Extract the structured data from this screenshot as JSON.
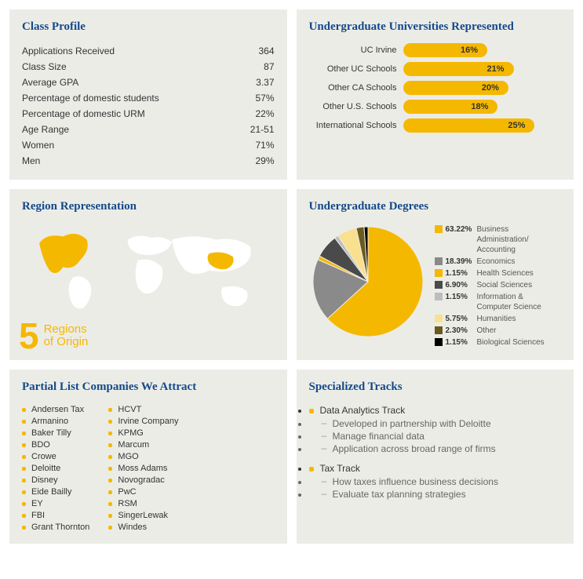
{
  "colors": {
    "panel_bg": "#ecece7",
    "heading": "#144a8a",
    "accent": "#f5b800",
    "text": "#333333",
    "muted": "#666666"
  },
  "class_profile": {
    "title": "Class Profile",
    "rows": [
      {
        "label": "Applications Received",
        "value": "364"
      },
      {
        "label": "Class Size",
        "value": "87"
      },
      {
        "label": "Average GPA",
        "value": "3.37"
      },
      {
        "label": "Percentage of domestic students",
        "value": "57%"
      },
      {
        "label": "Percentage of domestic URM",
        "value": "22%"
      },
      {
        "label": "Age Range",
        "value": "21-51"
      },
      {
        "label": "Women",
        "value": "71%"
      },
      {
        "label": "Men",
        "value": "29%"
      }
    ]
  },
  "universities": {
    "title": "Undergraduate Universities Represented",
    "type": "bar",
    "bar_color": "#f5b800",
    "max": 30,
    "items": [
      {
        "label": "UC Irvine",
        "pct": 16
      },
      {
        "label": "Other UC Schools",
        "pct": 21
      },
      {
        "label": "Other CA Schools",
        "pct": 20
      },
      {
        "label": "Other U.S. Schools",
        "pct": 18
      },
      {
        "label": "International Schools",
        "pct": 25
      }
    ]
  },
  "region": {
    "title": "Region Representation",
    "big_number": "5",
    "caption_line1": "Regions",
    "caption_line2": "of Origin",
    "map_land_color": "#ffffff",
    "map_highlight_color": "#f5b800"
  },
  "degrees": {
    "title": "Undergraduate Degrees",
    "type": "pie",
    "slices": [
      {
        "pct": 63.22,
        "label": "Business Administration/ Accounting",
        "color": "#f5b800"
      },
      {
        "pct": 18.39,
        "label": "Economics",
        "color": "#8a8a8a"
      },
      {
        "pct": 1.15,
        "label": "Health Sciences",
        "color": "#f5b800"
      },
      {
        "pct": 6.9,
        "label": "Social Sciences",
        "color": "#4a4a4a"
      },
      {
        "pct": 1.15,
        "label": "Information & Computer Science",
        "color": "#bdbdbd"
      },
      {
        "pct": 5.75,
        "label": "Humanities",
        "color": "#f9e08e"
      },
      {
        "pct": 2.3,
        "label": "Other",
        "color": "#6b5a1e"
      },
      {
        "pct": 1.15,
        "label": "Biological Sciences",
        "color": "#000000"
      }
    ]
  },
  "companies": {
    "title": "Partial List Companies We Attract",
    "col1": [
      "Andersen Tax",
      "Armanino",
      "Baker Tilly",
      "BDO",
      "Crowe",
      "Deloitte",
      "Disney",
      "Eide Bailly",
      "EY",
      "FBI",
      "Grant Thornton"
    ],
    "col2": [
      "HCVT",
      "Irvine Company",
      "KPMG",
      "Marcum",
      "MGO",
      "Moss Adams",
      "Novogradac",
      "PwC",
      "RSM",
      "SingerLewak",
      "Windes"
    ]
  },
  "tracks": {
    "title": "Specialized Tracks",
    "items": [
      {
        "name": "Data Analytics Track",
        "subs": [
          "Developed in partnership with Deloitte",
          "Manage financial data",
          "Application across broad range of firms"
        ]
      },
      {
        "name": "Tax Track",
        "subs": [
          "How taxes influence business decisions",
          "Evaluate tax planning strategies"
        ]
      }
    ]
  }
}
